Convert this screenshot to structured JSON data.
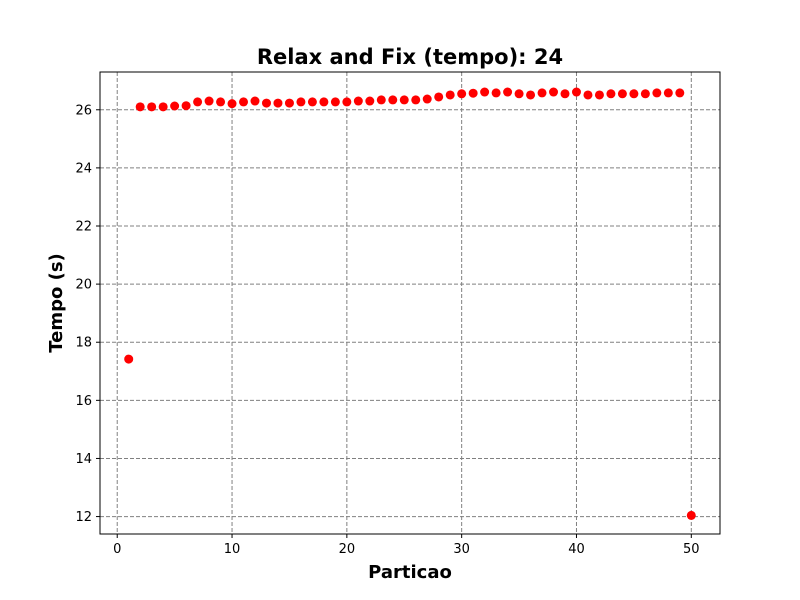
{
  "chart_data": {
    "type": "scatter",
    "title": "Relax and Fix (tempo): 24",
    "xlabel": "Particao",
    "ylabel": "Tempo (s)",
    "xlim": [
      -1.5,
      52.5
    ],
    "ylim": [
      11.4,
      27.3
    ],
    "xticks": [
      0,
      10,
      20,
      30,
      40,
      50
    ],
    "yticks": [
      12,
      14,
      16,
      18,
      20,
      22,
      24,
      26
    ],
    "grid": true,
    "grid_style": "dashed",
    "legend": "none",
    "colors": {
      "marker": "#ff0000",
      "grid": "#808080"
    },
    "series": [
      {
        "x": [
          1,
          2,
          3,
          4,
          5,
          6,
          7,
          8,
          9,
          10,
          11,
          12,
          13,
          14,
          15,
          16,
          17,
          18,
          19,
          20,
          21,
          22,
          23,
          24,
          25,
          26,
          27,
          28,
          29,
          30,
          31,
          32,
          33,
          34,
          35,
          36,
          37,
          38,
          39,
          40,
          41,
          42,
          43,
          44,
          45,
          46,
          47,
          48,
          49,
          50
        ],
        "y": [
          17.42,
          26.1,
          26.1,
          26.1,
          26.13,
          26.14,
          26.27,
          26.3,
          26.27,
          26.21,
          26.27,
          26.3,
          26.23,
          26.23,
          26.23,
          26.27,
          26.27,
          26.27,
          26.27,
          26.27,
          26.3,
          26.3,
          26.34,
          26.34,
          26.34,
          26.34,
          26.37,
          26.44,
          26.51,
          26.55,
          26.57,
          26.61,
          26.58,
          26.61,
          26.55,
          26.51,
          26.58,
          26.61,
          26.55,
          26.61,
          26.51,
          26.51,
          26.55,
          26.55,
          26.55,
          26.55,
          26.58,
          26.58,
          26.58,
          12.04
        ]
      }
    ]
  }
}
